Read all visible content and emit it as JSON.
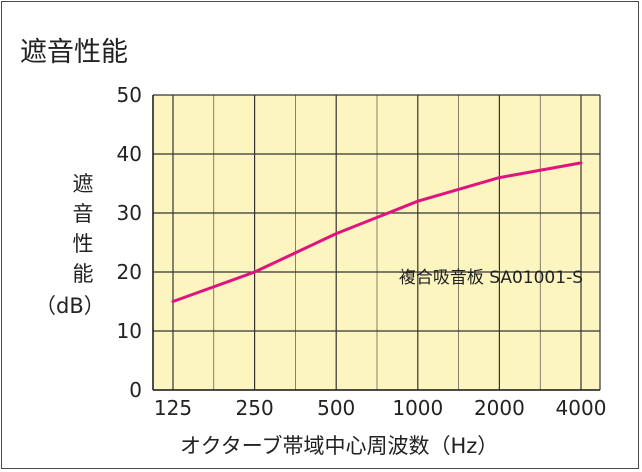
{
  "header": {
    "title": "遮音性能"
  },
  "chart_data": {
    "type": "line",
    "categories": [
      "125",
      "250",
      "500",
      "1000",
      "2000",
      "4000"
    ],
    "series": [
      {
        "name": "複合吸音板 SA01001-S",
        "values": [
          15,
          20,
          26.5,
          32,
          36,
          38.5
        ]
      }
    ],
    "xlabel": "オクターブ帯域中心周波数（Hz）",
    "ylabel_chars": [
      "遮",
      "音",
      "性",
      "能"
    ],
    "ylabel_unit": "（dB）",
    "ylim": [
      0,
      50
    ],
    "yticks": [
      "0",
      "10",
      "20",
      "30",
      "40",
      "50"
    ],
    "grid": true,
    "colors": {
      "plot_bg": "#fdf5c0",
      "line": "#e0137f",
      "grid": "#333333"
    }
  }
}
